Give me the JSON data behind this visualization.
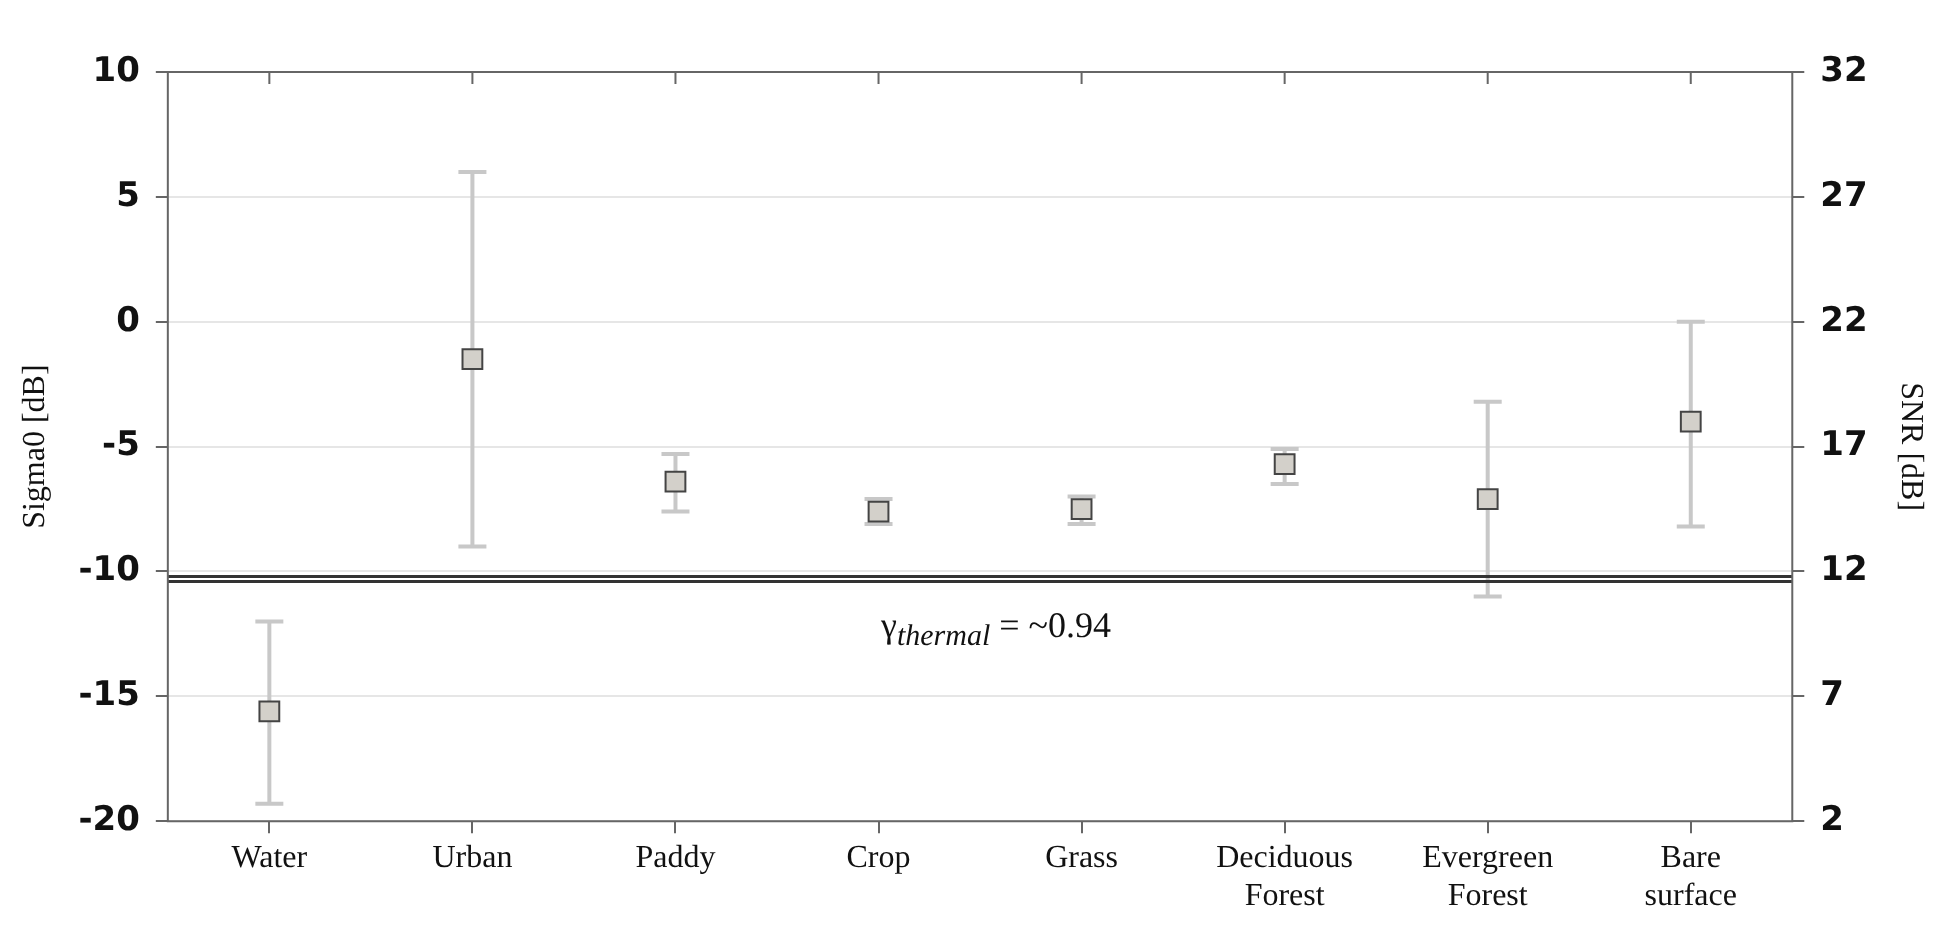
{
  "chart_data": {
    "type": "scatter",
    "ylabel": "Sigma0 [dB]",
    "y2label": "SNR [dB]",
    "categories": [
      "Water",
      "Urban",
      "Paddy",
      "Crop",
      "Grass",
      "Deciduous Forest",
      "Evergreen Forest",
      "Bare surface"
    ],
    "series": [
      {
        "color": "#d3d0ca",
        "values": [
          -15.6,
          -1.5,
          -6.4,
          -7.6,
          -7.5,
          -5.7,
          -7.1,
          -4.0
        ],
        "errors": [
          [
            -19.3,
            -12.0
          ],
          [
            -9.0,
            6.0
          ],
          [
            -7.6,
            -5.3
          ],
          [
            -8.1,
            -7.1
          ],
          [
            -8.1,
            -7.0
          ],
          [
            -6.5,
            -5.1
          ],
          [
            -11.0,
            -3.2
          ],
          [
            -8.2,
            0.0
          ]
        ]
      }
    ],
    "ylim": [
      -20,
      10
    ],
    "yticks": [
      -20,
      -15,
      -10,
      -5,
      0,
      5,
      10
    ],
    "y2lim": [
      2,
      32
    ],
    "y2ticks": [
      2,
      7,
      12,
      17,
      22,
      27,
      32
    ],
    "ref_lines": [
      {
        "axis": "y",
        "value": -10.2,
        "color": "#333333",
        "line_style": "solid"
      },
      {
        "axis": "y",
        "value": -10.4,
        "color": "#333333",
        "line_style": "solid",
        "label": "γ$_{thermal}$ = ~0.94"
      }
    ],
    "marker": "square",
    "grid": "y",
    "legend": false
  }
}
